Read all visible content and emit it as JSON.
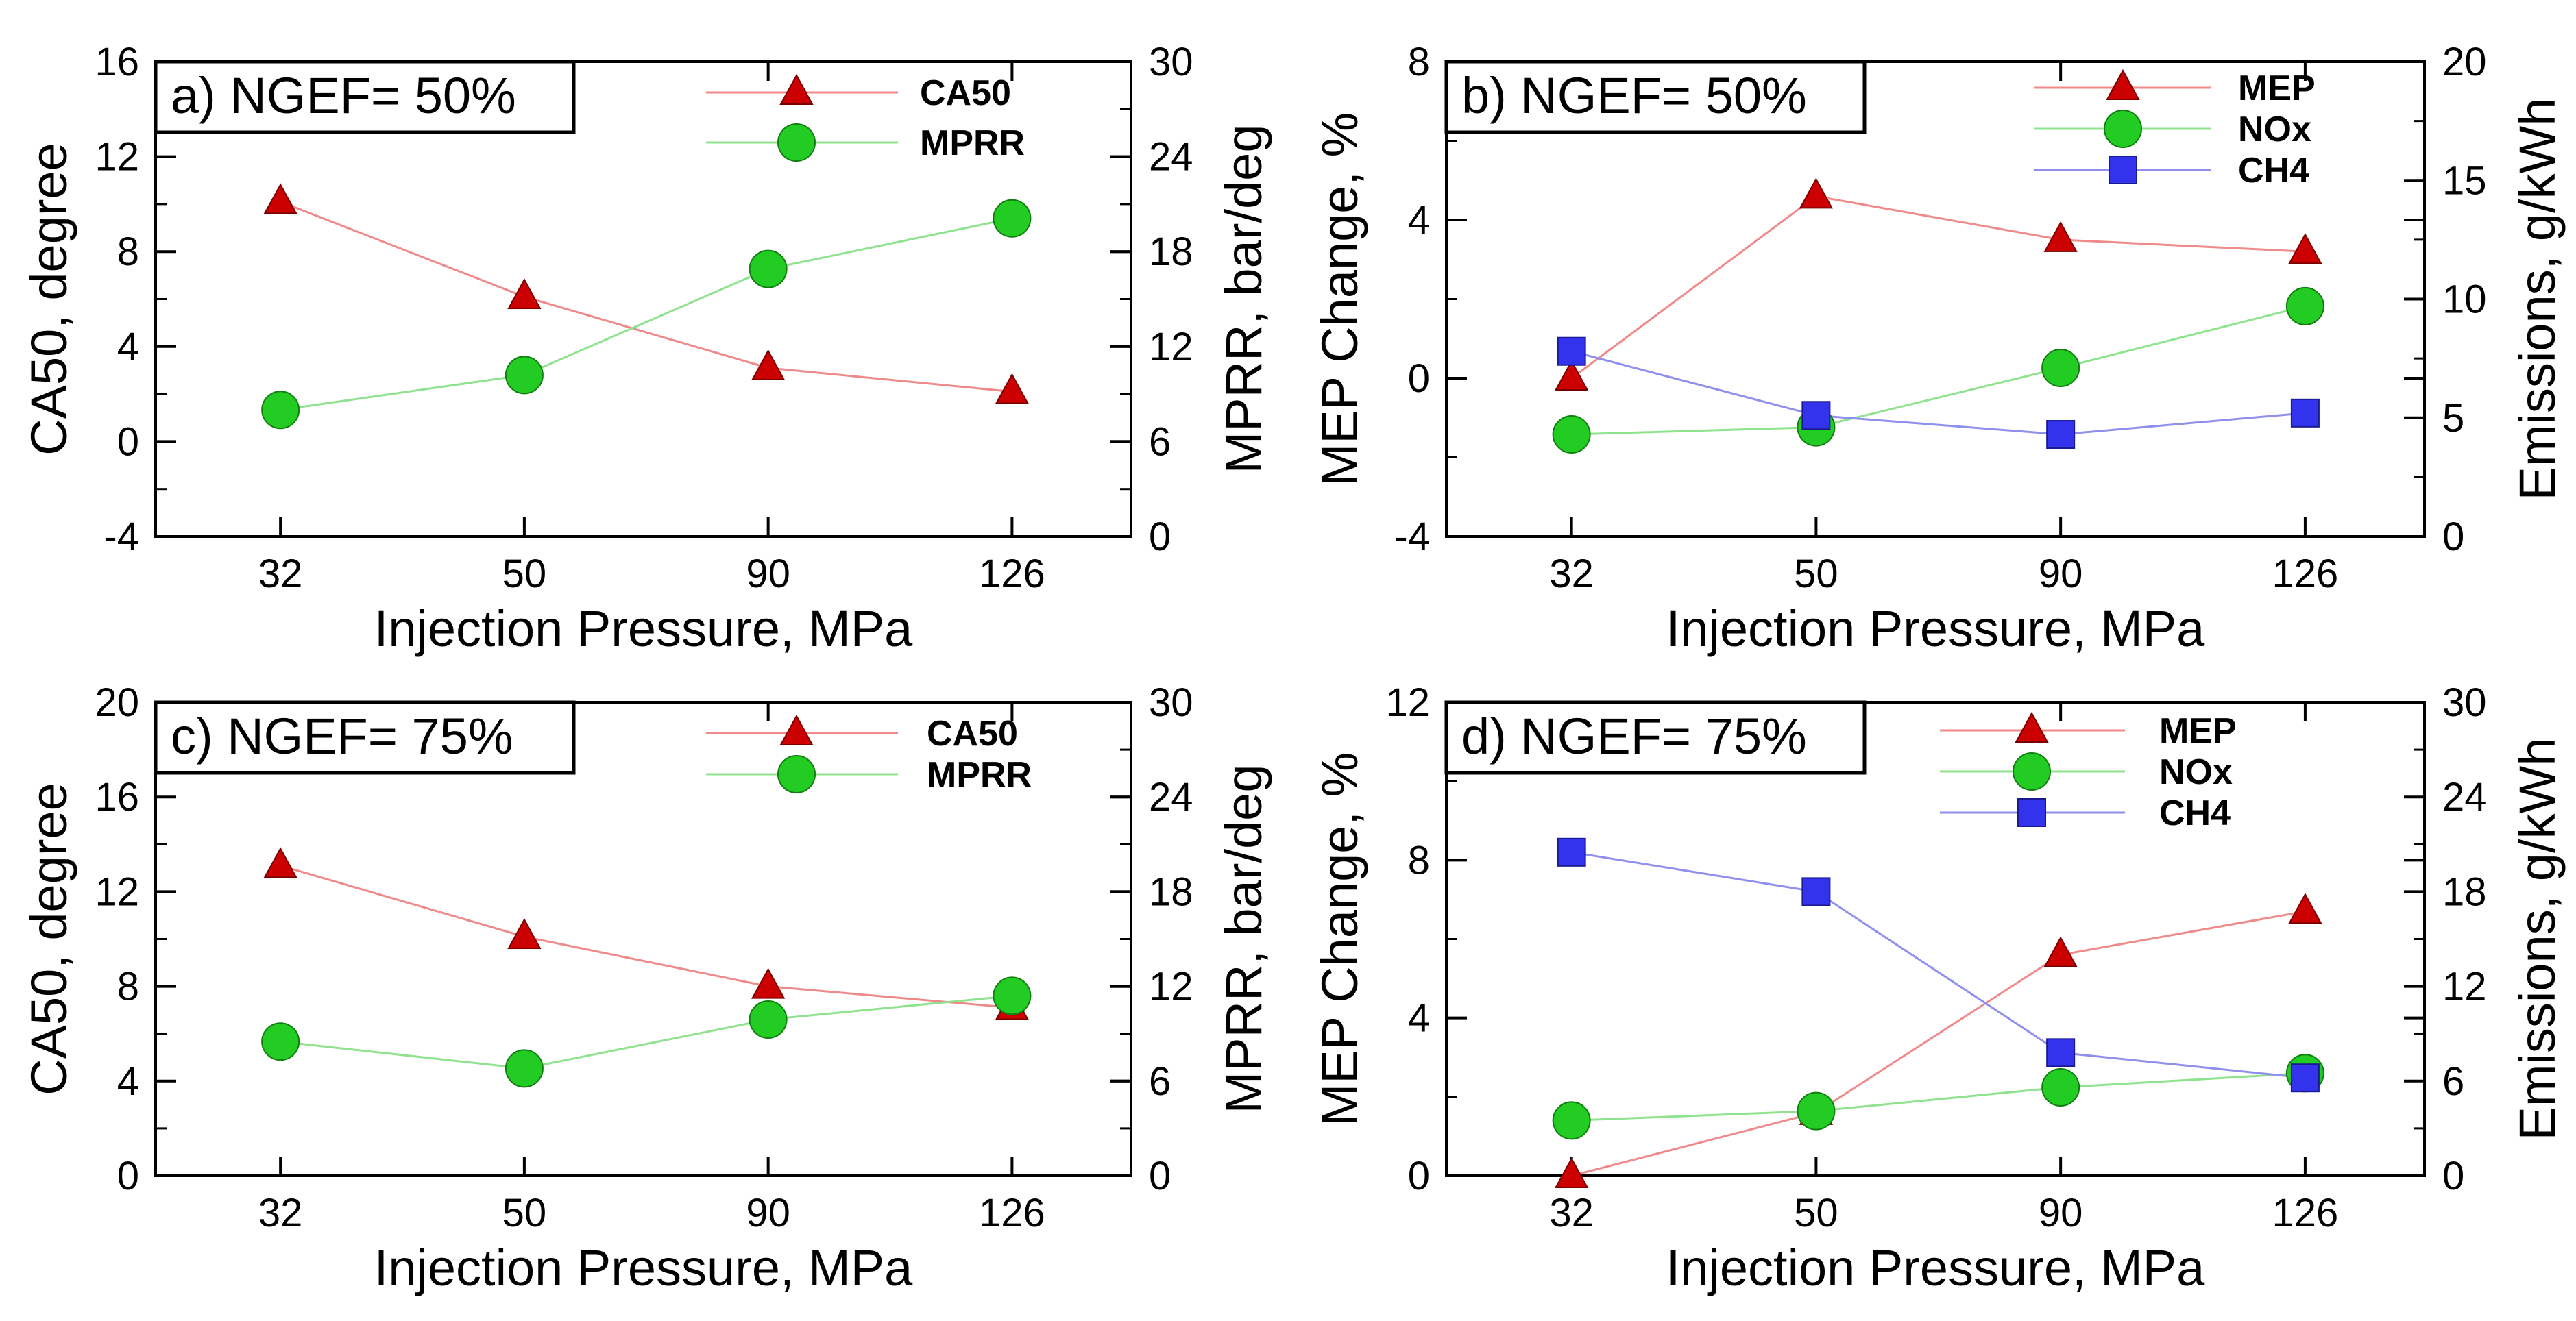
{
  "figure": {
    "colors": {
      "red": "#cc0000",
      "green": "#22cc22",
      "blue": "#3333ee",
      "red_line": "#f08a8a",
      "green_line": "#8fe38f",
      "blue_line": "#8f8fee",
      "axis": "#000000"
    }
  },
  "chart_data": [
    {
      "id": "a",
      "type": "line",
      "panel_label": "a) NGEF= 50%",
      "categories": [
        "32",
        "50",
        "90",
        "126"
      ],
      "xlabel": "Injection Pressure, MPa",
      "ylabel": "CA50, degree",
      "y2label": "MPRR, bar/deg",
      "ylim": [
        -4,
        16
      ],
      "yticks": [
        "-4",
        "0",
        "4",
        "8",
        "12",
        "16"
      ],
      "y2lim": [
        0,
        30
      ],
      "y2ticks": [
        "0",
        "6",
        "12",
        "18",
        "24",
        "30"
      ],
      "legend_position": "top-right",
      "series": [
        {
          "name": "CA50",
          "axis": "left",
          "marker": "triangle",
          "color": "red",
          "values": [
            10.1,
            6.1,
            3.1,
            2.1
          ]
        },
        {
          "name": "MPRR",
          "axis": "right",
          "marker": "circle",
          "color": "green",
          "values": [
            8.0,
            10.2,
            16.9,
            20.1
          ]
        }
      ]
    },
    {
      "id": "b",
      "type": "line",
      "panel_label": "b) NGEF= 50%",
      "categories": [
        "32",
        "50",
        "90",
        "126"
      ],
      "xlabel": "Injection Pressure, MPa",
      "ylabel": "MEP Change, %",
      "y2label": "Emissions, g/kWh",
      "ylim": [
        -4,
        8
      ],
      "yticks": [
        "-4",
        "0",
        "4",
        "8"
      ],
      "y2lim": [
        0,
        20
      ],
      "y2ticks": [
        "0",
        "5",
        "10",
        "15",
        "20"
      ],
      "legend_position": "top-right",
      "series": [
        {
          "name": "MEP",
          "axis": "left",
          "marker": "triangle",
          "color": "red",
          "values": [
            0.0,
            4.6,
            3.5,
            3.2
          ]
        },
        {
          "name": "NOx",
          "axis": "right",
          "marker": "circle",
          "color": "green",
          "values": [
            4.3,
            4.6,
            7.1,
            9.7
          ]
        },
        {
          "name": "CH4",
          "axis": "right",
          "marker": "square",
          "color": "blue",
          "values": [
            7.8,
            5.1,
            4.3,
            5.2
          ]
        }
      ]
    },
    {
      "id": "c",
      "type": "line",
      "panel_label": "c) NGEF= 75%",
      "categories": [
        "32",
        "50",
        "90",
        "126"
      ],
      "xlabel": "Injection Pressure, MPa",
      "ylabel": "CA50, degree",
      "y2label": "MPRR, bar/deg",
      "ylim": [
        0,
        20
      ],
      "yticks": [
        "0",
        "4",
        "8",
        "12",
        "16",
        "20"
      ],
      "y2lim": [
        0,
        30
      ],
      "y2ticks": [
        "0",
        "6",
        "12",
        "18",
        "24",
        "30"
      ],
      "legend_position": "top-right",
      "series": [
        {
          "name": "CA50",
          "axis": "left",
          "marker": "triangle",
          "color": "red",
          "values": [
            13.1,
            10.1,
            8.0,
            7.1
          ]
        },
        {
          "name": "MPRR",
          "axis": "right",
          "marker": "circle",
          "color": "green",
          "values": [
            8.5,
            6.8,
            9.9,
            11.4
          ]
        }
      ]
    },
    {
      "id": "d",
      "type": "line",
      "panel_label": "d) NGEF= 75%",
      "categories": [
        "32",
        "50",
        "90",
        "126"
      ],
      "xlabel": "Injection Pressure, MPa",
      "ylabel": "MEP Change, %",
      "y2label": "Emissions, g/kWh",
      "ylim": [
        0,
        12
      ],
      "yticks": [
        "0",
        "4",
        "8",
        "12"
      ],
      "y2lim": [
        0,
        30
      ],
      "y2ticks": [
        "0",
        "6",
        "12",
        "18",
        "24",
        "30"
      ],
      "legend_position": "top-right",
      "series": [
        {
          "name": "MEP",
          "axis": "left",
          "marker": "triangle",
          "color": "red",
          "values": [
            0.0,
            1.6,
            5.6,
            6.7
          ]
        },
        {
          "name": "NOx",
          "axis": "right",
          "marker": "circle",
          "color": "green",
          "values": [
            3.5,
            4.1,
            5.6,
            6.5
          ]
        },
        {
          "name": "CH4",
          "axis": "right",
          "marker": "square",
          "color": "blue",
          "values": [
            20.5,
            18.0,
            7.8,
            6.2
          ]
        }
      ]
    }
  ]
}
